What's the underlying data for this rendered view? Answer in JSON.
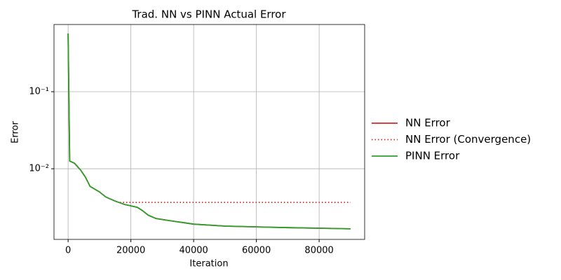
{
  "chart_data": {
    "type": "line",
    "title": "Trad. NN vs PINN Actual Error",
    "x_label": "Iteration",
    "y_label": "Error",
    "log_y": true,
    "grid": true,
    "legend": "outside right",
    "xlim": [
      -4500,
      94500
    ],
    "xticks": [
      0,
      20000,
      40000,
      60000,
      80000
    ],
    "ylim": [
      0.00121,
      0.746
    ],
    "yticks": [
      {
        "value": 0.01,
        "label": "10⁻²"
      },
      {
        "value": 0.1,
        "label": "10⁻¹"
      }
    ],
    "series": [
      {
        "name": "NN Error",
        "color": "#d62728",
        "style": "solid",
        "x": [
          0,
          500,
          2000,
          4000,
          5500,
          7000,
          10000,
          12000,
          15000,
          18000,
          22000,
          23500,
          25500,
          28000,
          32000,
          40000,
          50000,
          60000,
          70000,
          80000,
          90000
        ],
        "values": [
          0.57,
          0.0126,
          0.0118,
          0.0096,
          0.0078,
          0.0059,
          0.005,
          0.0043,
          0.0038,
          0.00344,
          0.00316,
          0.0029,
          0.0025,
          0.00226,
          0.00213,
          0.00191,
          0.0018,
          0.00176,
          0.00172,
          0.00169,
          0.00166
        ]
      },
      {
        "name": "NN Error (Convergence)",
        "color": "#d62728",
        "style": "dotted",
        "x": [
          16500,
          90000
        ],
        "values": [
          0.00366,
          0.00366
        ]
      },
      {
        "name": "PINN Error",
        "color": "#2ca02c",
        "style": "solid",
        "x": [
          0,
          500,
          2000,
          4000,
          5500,
          7000,
          10000,
          12000,
          15000,
          18000,
          22000,
          23500,
          25500,
          28000,
          32000,
          40000,
          50000,
          60000,
          70000,
          80000,
          90000
        ],
        "values": [
          0.57,
          0.0126,
          0.0118,
          0.0096,
          0.0078,
          0.0059,
          0.005,
          0.0043,
          0.0038,
          0.00344,
          0.00316,
          0.0029,
          0.0025,
          0.00226,
          0.00213,
          0.00191,
          0.0018,
          0.00176,
          0.00172,
          0.00169,
          0.00166
        ]
      }
    ]
  }
}
